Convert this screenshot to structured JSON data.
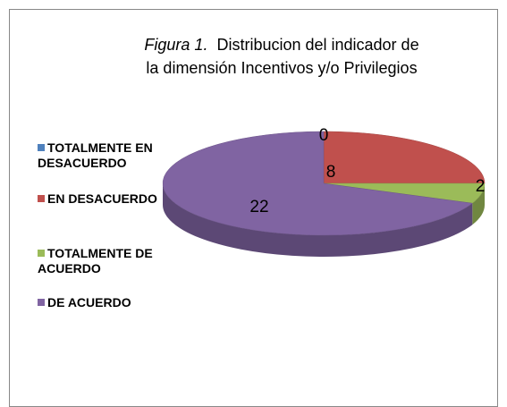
{
  "chart_data": {
    "type": "pie3d",
    "title_prefix": "Figura 1.",
    "title": [
      "Distribucion del indicador de",
      "la dimensión Incentivos y/o Privilegios"
    ],
    "series": [
      {
        "name": "TOTALMENTE EN DESACUERDO",
        "color": "#4f81bd",
        "values": [
          0
        ]
      },
      {
        "name": "EN DESACUERDO",
        "color": "#c0504d",
        "values": [
          8
        ]
      },
      {
        "name": "TOTALMENTE DE ACUERDO",
        "color": "#9bbb59",
        "values": [
          2
        ]
      },
      {
        "name": "DE ACUERDO",
        "color": "#8064a2",
        "values": [
          22
        ]
      }
    ],
    "legend": "left"
  }
}
